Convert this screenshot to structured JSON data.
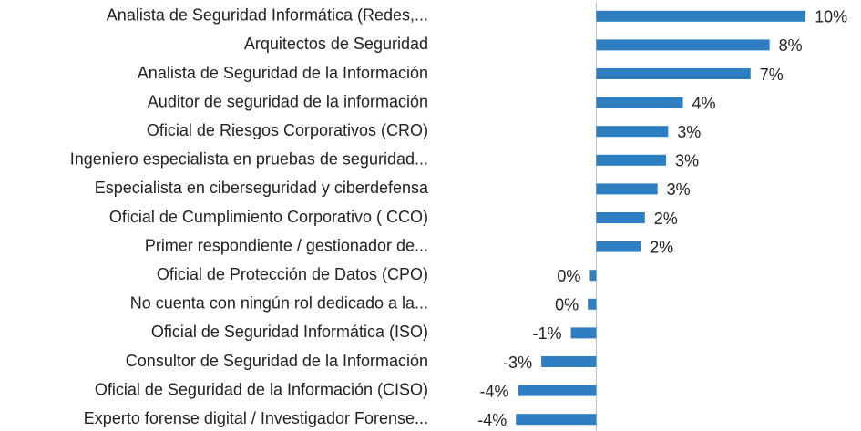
{
  "chart_data": {
    "type": "bar",
    "orientation": "horizontal",
    "categories": [
      "Analista de Seguridad Informática (Redes,...",
      "Arquitectos de Seguridad",
      "Analista de Seguridad de la Información",
      "Auditor de seguridad de la información",
      "Oficial de Riesgos Corporativos (CRO)",
      "Ingeniero especialista en pruebas de seguridad...",
      "Especialista en ciberseguridad y ciberdefensa",
      "Oficial de Cumplimiento Corporativo ( CCO)",
      "Primer respondiente / gestionador de...",
      "Oficial de Protección de Datos (CPO)",
      "No cuenta con ningún rol dedicado a la...",
      "Oficial de Seguridad Informática (ISO)",
      "Consultor de Seguridad de la Información",
      "Oficial de Seguridad de la Información (CISO)",
      "Experto forense digital / Investigador Forense..."
    ],
    "values": [
      9.9,
      8.2,
      7.3,
      4.1,
      3.4,
      3.3,
      2.9,
      2.3,
      2.1,
      -0.3,
      -0.4,
      -1.2,
      -2.6,
      -3.7,
      -3.8
    ],
    "value_labels": [
      "10%",
      "8%",
      "7%",
      "4%",
      "3%",
      "3%",
      "3%",
      "2%",
      "2%",
      "0%",
      "0%",
      "-1%",
      "-3%",
      "-4%",
      "-4%"
    ],
    "color": "#2e7fc1",
    "xlim": [
      -4.5,
      10.5
    ]
  }
}
